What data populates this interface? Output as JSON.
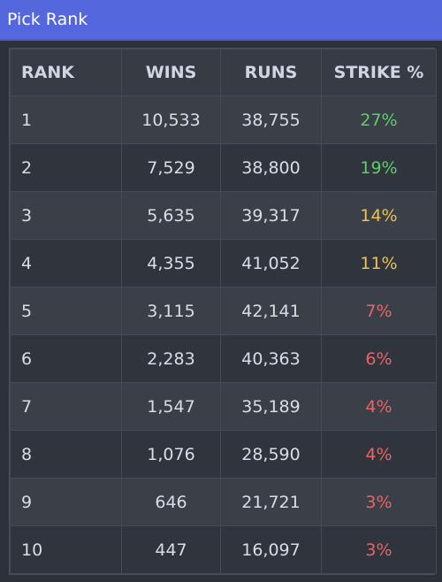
{
  "window": {
    "title": "Pick Rank"
  },
  "table": {
    "headers": [
      "RANK",
      "WINS",
      "RUNS",
      "STRIKE %"
    ],
    "rows": [
      {
        "rank": "1",
        "wins": "10,533",
        "runs": "38,755",
        "strike": "27%",
        "strike_color": "#5bd06a"
      },
      {
        "rank": "2",
        "wins": "7,529",
        "runs": "38,800",
        "strike": "19%",
        "strike_color": "#5bd06a"
      },
      {
        "rank": "3",
        "wins": "5,635",
        "runs": "39,317",
        "strike": "14%",
        "strike_color": "#f1c24a"
      },
      {
        "rank": "4",
        "wins": "4,355",
        "runs": "41,052",
        "strike": "11%",
        "strike_color": "#f1c24a"
      },
      {
        "rank": "5",
        "wins": "3,115",
        "runs": "42,141",
        "strike": "7%",
        "strike_color": "#ef6262"
      },
      {
        "rank": "6",
        "wins": "2,283",
        "runs": "40,363",
        "strike": "6%",
        "strike_color": "#ef6262"
      },
      {
        "rank": "7",
        "wins": "1,547",
        "runs": "35,189",
        "strike": "4%",
        "strike_color": "#ef6262"
      },
      {
        "rank": "8",
        "wins": "1,076",
        "runs": "28,590",
        "strike": "4%",
        "strike_color": "#ef6262"
      },
      {
        "rank": "9",
        "wins": "646",
        "runs": "21,721",
        "strike": "3%",
        "strike_color": "#ef6262"
      },
      {
        "rank": "10",
        "wins": "447",
        "runs": "16,097",
        "strike": "3%",
        "strike_color": "#ef6262"
      }
    ]
  }
}
